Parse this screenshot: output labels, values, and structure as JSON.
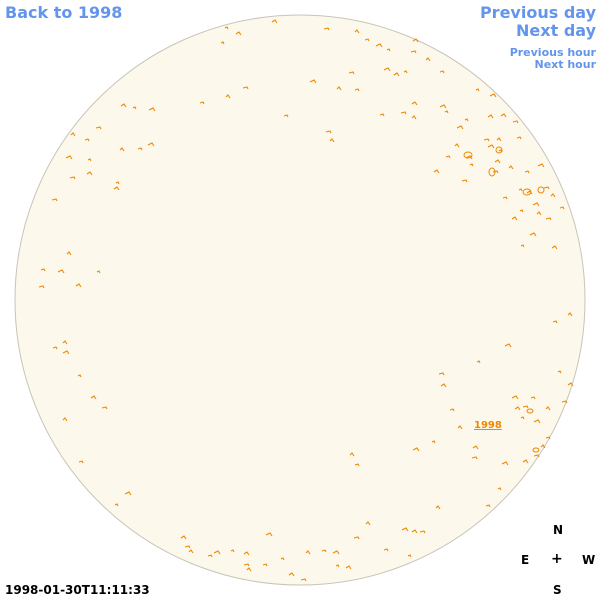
{
  "nav": {
    "back_label": "Back to 1998",
    "prev_day_label": "Previous day",
    "next_day_label": "Next day",
    "prev_hour_label": "Previous hour",
    "next_hour_label": "Next hour"
  },
  "timestamp": "1998-01-30T11:11:33",
  "region_label": "1998",
  "compass": {
    "north": "N",
    "east": "E",
    "center": "+",
    "west": "W",
    "south": "S"
  },
  "colors": {
    "disk_fill": "#fdf8ec",
    "disk_edge": "#c8c4b8",
    "contour": "#ee8800",
    "link": "#6495ed",
    "background": "#ffffff"
  },
  "icons": {
    "compass_center": "plus-crosshair"
  }
}
